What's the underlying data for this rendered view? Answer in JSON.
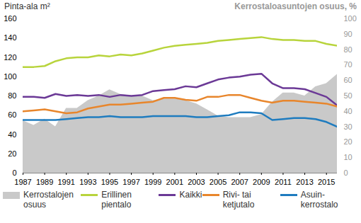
{
  "chart_data": {
    "type": "line",
    "y_label": "Pinta-ala m²",
    "y2_label": "Kerrostaloasuntojen osuus, %",
    "x": [
      1987,
      1988,
      1989,
      1990,
      1991,
      1992,
      1993,
      1994,
      1995,
      1996,
      1997,
      1998,
      1999,
      2000,
      2001,
      2002,
      2003,
      2004,
      2005,
      2006,
      2007,
      2008,
      2009,
      2010,
      2011,
      2012,
      2013,
      2014,
      2015,
      2016
    ],
    "xlim": [
      1987,
      2016
    ],
    "xticks": [
      1987,
      1989,
      1991,
      1993,
      1995,
      1997,
      1999,
      2001,
      2003,
      2005,
      2007,
      2009,
      2011,
      2013,
      2015
    ],
    "ylim": [
      0,
      160
    ],
    "yticks": [
      0,
      20,
      40,
      60,
      80,
      100,
      120,
      140,
      160
    ],
    "y2lim": [
      0,
      100
    ],
    "y2ticks": [
      0,
      10,
      20,
      30,
      40,
      50,
      60,
      70,
      80,
      90,
      100
    ],
    "grid": false,
    "legend": "bottom",
    "series": [
      {
        "name": "Kerrostalojen osuus",
        "type": "area",
        "axis": "y2",
        "color": "#c9c9c9",
        "values": [
          34,
          31,
          35,
          30,
          42,
          42,
          47,
          50,
          54,
          51,
          50,
          50,
          47,
          48,
          48,
          47,
          45,
          41,
          37,
          36,
          36,
          36,
          38,
          46,
          52,
          52,
          50,
          56,
          58,
          64
        ]
      },
      {
        "name": "Erillinen pientalo",
        "type": "line",
        "color": "#b8d43c",
        "values": [
          110,
          110,
          111,
          116,
          119,
          120,
          120,
          122,
          121,
          123,
          122,
          124,
          127,
          130,
          132,
          133,
          134,
          135,
          137,
          138,
          139,
          140,
          141,
          139,
          138,
          138,
          137,
          137,
          134,
          132
        ]
      },
      {
        "name": "Kaikki",
        "type": "line",
        "color": "#6b3996",
        "values": [
          79,
          79,
          78,
          82,
          80,
          81,
          80,
          81,
          79,
          81,
          80,
          81,
          85,
          86,
          87,
          90,
          89,
          93,
          97,
          99,
          100,
          102,
          103,
          93,
          88,
          88,
          87,
          83,
          79,
          70
        ]
      },
      {
        "name": "Rivi- tai ketjutalo",
        "type": "line",
        "color": "#e8862c",
        "values": [
          64,
          65,
          66,
          64,
          62,
          63,
          67,
          69,
          71,
          71,
          72,
          73,
          74,
          78,
          78,
          76,
          75,
          79,
          79,
          81,
          81,
          78,
          75,
          73,
          75,
          75,
          74,
          73,
          72,
          69
        ]
      },
      {
        "name": "Asuin-kerrostalo",
        "type": "line",
        "color": "#1f7cbf",
        "values": [
          55,
          55,
          55,
          55,
          56,
          57,
          58,
          58,
          59,
          58,
          58,
          58,
          59,
          59,
          59,
          59,
          58,
          58,
          59,
          60,
          63,
          63,
          62,
          55,
          56,
          57,
          57,
          56,
          53,
          48
        ]
      }
    ]
  }
}
